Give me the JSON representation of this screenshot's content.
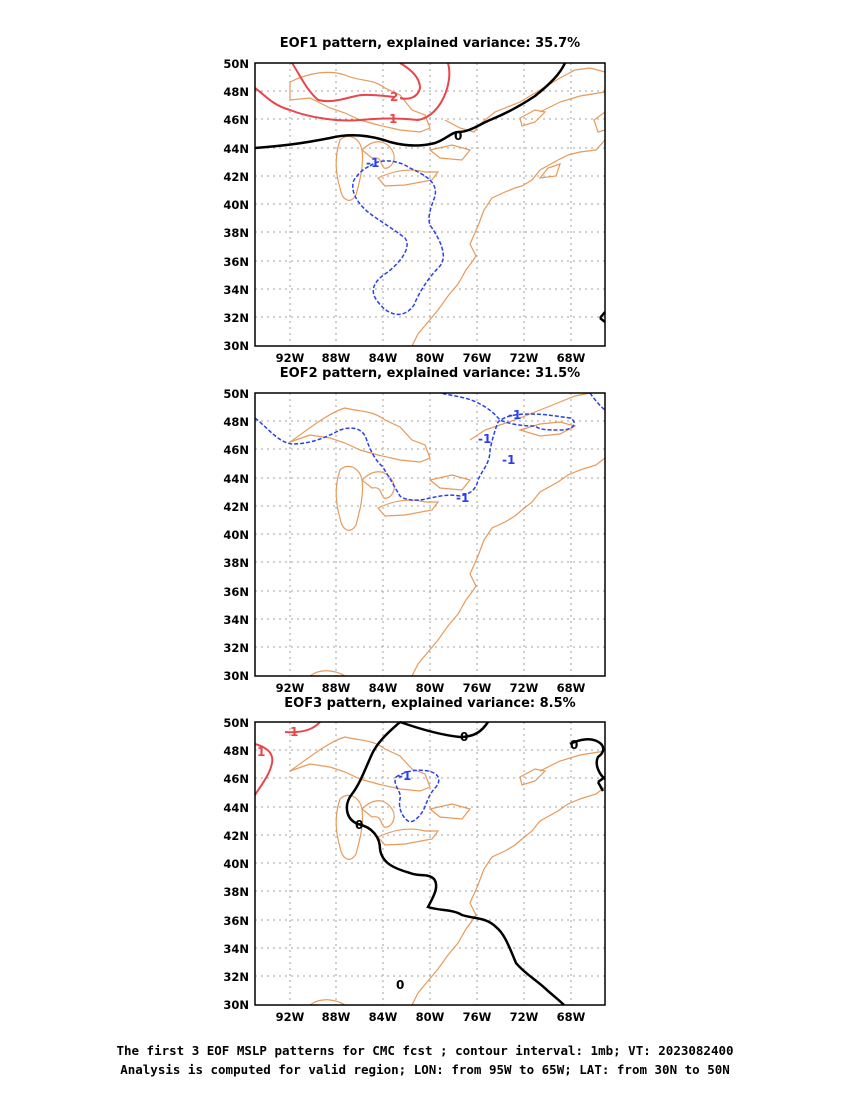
{
  "panels": [
    {
      "title": "EOF1 pattern, explained variance: 35.7%",
      "labels": {
        "pos2": "2",
        "pos1": "1",
        "zero": "0",
        "neg1": "-1"
      }
    },
    {
      "title": "EOF2 pattern, explained variance: 31.5%",
      "labels": {
        "neg1a": "-1",
        "neg1b": "-1",
        "neg1c": "-1",
        "neg1d": "-1"
      }
    },
    {
      "title": "EOF3 pattern, explained variance: 8.5%",
      "labels": {
        "pos1a": "1",
        "pos1b": "1",
        "zeroa": "0",
        "zerob": "0",
        "zeroc": "0",
        "zerod": "0",
        "neg1": "-1"
      }
    }
  ],
  "axes": {
    "x_ticks": [
      "92W",
      "88W",
      "84W",
      "80W",
      "76W",
      "72W",
      "68W"
    ],
    "y_ticks": [
      "50N",
      "48N",
      "46N",
      "44N",
      "42N",
      "40N",
      "38N",
      "36N",
      "34N",
      "32N",
      "30N"
    ]
  },
  "caption": {
    "line1": "The first 3 EOF MSLP patterns for CMC fcst ; contour interval: 1mb; VT: 2023082400",
    "line2": "Analysis is computed for valid region; LON: from 95W to 65W; LAT: from 30N to 50N"
  },
  "colors": {
    "positive": "#e8464a",
    "negative": "#2a3ff0",
    "zero": "#000000",
    "coast": "#e89a5a",
    "grid": "#a0a0a0"
  }
}
